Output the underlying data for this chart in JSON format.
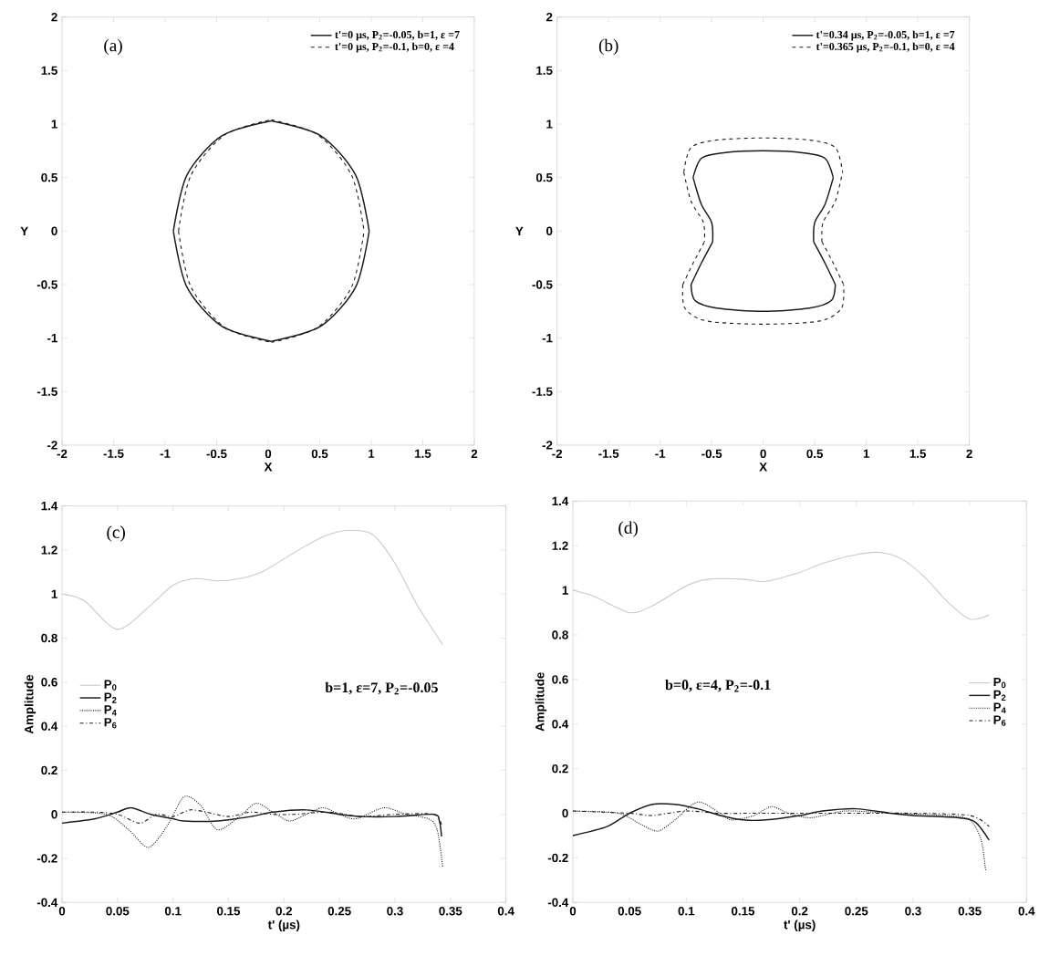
{
  "chart_data": [
    {
      "type": "line",
      "xlabel": "X",
      "ylabel": "Y",
      "xlim": [
        -2,
        2
      ],
      "ylim": [
        -2,
        2
      ],
      "xticks": [
        -2,
        -1.5,
        -1,
        -0.5,
        0,
        0.5,
        1,
        1.5,
        2
      ],
      "yticks": [
        -2,
        -1.5,
        -1,
        -0.5,
        0,
        0.5,
        1,
        1.5,
        2
      ],
      "legend": "top right",
      "annotations": [
        "(a)"
      ],
      "series": [
        {
          "name": "t'=0 µs, P$_{2}$=-0.05, b=1, ε =7",
          "color": "#1a1a1a",
          "line_style": "solid",
          "x": [
            -0.92,
            -0.79,
            -0.45,
            0.03
          ],
          "values": [
            0,
            0.52,
            0.89,
            1.03
          ]
        },
        {
          "name": "t'=0 µs, P$_{2}$=-0.1, b=0, ε =4",
          "color": "#1a1a1a",
          "line_style": "dashed",
          "x": [
            -0.87,
            -0.75,
            -0.42,
            0.03
          ],
          "values": [
            0,
            0.52,
            0.9,
            1.04
          ]
        },
        {
          "color": "#1a1a1a",
          "line_style": "solid",
          "x": [
            0.03,
            0.51,
            0.85,
            0.98
          ],
          "values": [
            1.03,
            0.89,
            0.52,
            0
          ]
        },
        {
          "color": "#1a1a1a",
          "line_style": "solid",
          "x": [
            -0.92,
            -0.79,
            -0.45,
            0.03
          ],
          "values": [
            0,
            -0.52,
            -0.89,
            -1.03
          ]
        },
        {
          "color": "#1a1a1a",
          "line_style": "solid",
          "x": [
            0.03,
            0.51,
            0.85,
            0.98
          ],
          "values": [
            -1.03,
            -0.89,
            -0.52,
            0
          ]
        },
        {
          "color": "#1a1a1a",
          "line_style": "dashed",
          "x": [
            0.03,
            0.48,
            0.81,
            0.93
          ],
          "values": [
            1.04,
            0.9,
            0.52,
            0
          ]
        },
        {
          "color": "#1a1a1a",
          "line_style": "dashed",
          "x": [
            -0.87,
            -0.75,
            -0.42,
            0.03
          ],
          "values": [
            0,
            -0.52,
            -0.9,
            -1.04
          ]
        },
        {
          "color": "#1a1a1a",
          "line_style": "dashed",
          "x": [
            0.03,
            0.48,
            0.81,
            0.93
          ],
          "values": [
            -1.04,
            -0.9,
            -0.52,
            0
          ]
        }
      ]
    },
    {
      "type": "line",
      "xlabel": "X",
      "ylabel": "Y",
      "xlim": [
        -2,
        2
      ],
      "ylim": [
        -2,
        2
      ],
      "xticks": [
        -2,
        -1.5,
        -1,
        -0.5,
        0,
        0.5,
        1,
        1.5,
        2
      ],
      "yticks": [
        -2,
        -1.5,
        -1,
        -0.5,
        0,
        0.5,
        1,
        1.5,
        2
      ],
      "legend": "top right",
      "annotations": [
        "(b)"
      ],
      "series": [
        {
          "name": "t'=0.34   µs, P$_{2}$=-0.05, b=1, ε =7",
          "color": "#1a1a1a",
          "line_style": "solid",
          "x": [
            -0.68,
            -0.6,
            -0.4,
            0,
            0.4,
            0.6,
            0.68
          ],
          "values": [
            0.5,
            0.68,
            0.73,
            0.75,
            0.73,
            0.68,
            0.5
          ]
        },
        {
          "name": "t'=0.365 µs, P$_{2}$=-0.1, b=0, ε =4",
          "color": "#1a1a1a",
          "line_style": "dashed",
          "x": [
            -0.77,
            -0.7,
            -0.45,
            0,
            0.45,
            0.7,
            0.77
          ],
          "values": [
            0.55,
            0.78,
            0.85,
            0.87,
            0.85,
            0.78,
            0.55
          ]
        },
        {
          "color": "#1a1a1a",
          "line_style": "solid",
          "x": [
            0.49,
            0.5,
            0.6,
            0.68
          ],
          "values": [
            -0.1,
            0.08,
            0.25,
            0.5
          ]
        },
        {
          "color": "#1a1a1a",
          "line_style": "solid",
          "x": [
            0.49,
            0.6,
            0.7
          ],
          "values": [
            -0.1,
            -0.3,
            -0.5
          ]
        },
        {
          "color": "#1a1a1a",
          "line_style": "solid",
          "x": [
            -0.7,
            -0.66,
            -0.45,
            0,
            0.45,
            0.66,
            0.7
          ],
          "values": [
            -0.5,
            -0.65,
            -0.72,
            -0.75,
            -0.72,
            -0.65,
            -0.5
          ]
        },
        {
          "color": "#1a1a1a",
          "line_style": "solid",
          "x": [
            -0.7,
            -0.6,
            -0.49
          ],
          "values": [
            -0.5,
            -0.3,
            -0.1
          ]
        },
        {
          "color": "#1a1a1a",
          "line_style": "solid",
          "x": [
            -0.68,
            -0.6,
            -0.5,
            -0.49
          ],
          "values": [
            0.5,
            0.25,
            0.08,
            -0.1
          ]
        },
        {
          "color": "#1a1a1a",
          "line_style": "dashed",
          "x": [
            0.57,
            0.58,
            0.7,
            0.77
          ],
          "values": [
            -0.1,
            0.08,
            0.28,
            0.55
          ]
        },
        {
          "color": "#1a1a1a",
          "line_style": "dashed",
          "x": [
            0.57,
            0.68,
            0.78
          ],
          "values": [
            -0.1,
            -0.3,
            -0.5
          ]
        },
        {
          "color": "#1a1a1a",
          "line_style": "dashed",
          "x": [
            -0.78,
            -0.76,
            -0.55,
            0,
            0.55,
            0.76,
            0.78
          ],
          "values": [
            -0.5,
            -0.72,
            -0.84,
            -0.87,
            -0.84,
            -0.72,
            -0.5
          ]
        },
        {
          "color": "#1a1a1a",
          "line_style": "dashed",
          "x": [
            -0.78,
            -0.68,
            -0.57
          ],
          "values": [
            -0.5,
            -0.3,
            -0.1
          ]
        },
        {
          "color": "#1a1a1a",
          "line_style": "dashed",
          "x": [
            -0.77,
            -0.7,
            -0.58,
            -0.57
          ],
          "values": [
            0.55,
            0.28,
            0.08,
            -0.1
          ]
        }
      ]
    },
    {
      "type": "line",
      "xlabel": "t' (µs)",
      "ylabel": "Amplitude",
      "xlim": [
        0,
        0.4
      ],
      "ylim": [
        -0.4,
        1.4
      ],
      "xticks": [
        0,
        0.05,
        0.1,
        0.15,
        0.2,
        0.25,
        0.3,
        0.35,
        0.4
      ],
      "yticks": [
        -0.4,
        -0.2,
        0,
        0.2,
        0.4,
        0.6,
        0.8,
        1,
        1.2,
        1.4
      ],
      "legend": "left",
      "annotations": [
        "(c)",
        "b=1, ε=7, P$_{2}$=-0.05"
      ],
      "series": [
        {
          "name": "P$_{0}$",
          "color": "#c8c8c8",
          "line_style": "solid",
          "x": [
            0,
            0.02,
            0.05,
            0.08,
            0.1,
            0.12,
            0.14,
            0.16,
            0.18,
            0.2,
            0.22,
            0.24,
            0.26,
            0.28,
            0.3,
            0.32,
            0.343
          ],
          "values": [
            1.0,
            0.97,
            0.84,
            0.95,
            1.04,
            1.07,
            1.06,
            1.07,
            1.1,
            1.16,
            1.22,
            1.27,
            1.29,
            1.27,
            1.14,
            0.95,
            0.77
          ]
        },
        {
          "name": "P$_{2}$",
          "color": "#1a1a1a",
          "line_style": "solid",
          "x": [
            0,
            0.03,
            0.05,
            0.062,
            0.08,
            0.1,
            0.11,
            0.14,
            0.17,
            0.19,
            0.22,
            0.25,
            0.27,
            0.3,
            0.335,
            0.34,
            0.342
          ],
          "values": [
            -0.04,
            -0.02,
            0.01,
            0.03,
            0.0,
            -0.02,
            -0.03,
            -0.03,
            -0.01,
            0.01,
            0.02,
            0.0,
            -0.01,
            -0.01,
            0.0,
            -0.03,
            -0.1
          ]
        },
        {
          "name": "P$_{4}$",
          "color": "#1a1a1a",
          "line_style": "dotted",
          "x": [
            0,
            0.04,
            0.06,
            0.078,
            0.095,
            0.11,
            0.125,
            0.14,
            0.16,
            0.175,
            0.19,
            0.205,
            0.22,
            0.235,
            0.25,
            0.265,
            0.29,
            0.31,
            0.33,
            0.338,
            0.343
          ],
          "values": [
            0.01,
            0.0,
            -0.07,
            -0.15,
            -0.05,
            0.08,
            0.04,
            -0.07,
            -0.01,
            0.05,
            0.01,
            -0.03,
            0.0,
            0.03,
            0.0,
            -0.02,
            0.03,
            0.0,
            -0.02,
            -0.07,
            -0.24
          ]
        },
        {
          "name": "P$_{6}$",
          "color": "#1a1a1a",
          "line_style": "dashdot",
          "x": [
            0,
            0.03,
            0.05,
            0.07,
            0.085,
            0.1,
            0.115,
            0.13,
            0.15,
            0.17,
            0.19,
            0.21,
            0.24,
            0.27,
            0.3,
            0.335,
            0.342
          ],
          "values": [
            0.01,
            0.01,
            0.0,
            -0.04,
            0.0,
            -0.01,
            0.02,
            0.01,
            -0.01,
            0.01,
            0.0,
            0.0,
            0.01,
            -0.01,
            0.0,
            0.0,
            -0.05
          ]
        }
      ]
    },
    {
      "type": "line",
      "xlabel": "t' (µs)",
      "ylabel": "Amplitude",
      "xlim": [
        0,
        0.4
      ],
      "ylim": [
        -0.4,
        1.4
      ],
      "xticks": [
        0,
        0.05,
        0.1,
        0.15,
        0.2,
        0.25,
        0.3,
        0.35,
        0.4
      ],
      "yticks": [
        -0.4,
        -0.2,
        0,
        0.2,
        0.4,
        0.6,
        0.8,
        1,
        1.2,
        1.4
      ],
      "legend": "right",
      "annotations": [
        "(d)",
        "b=0,  ε=4,  P$_{2}$=-0.1"
      ],
      "series": [
        {
          "name": "P$_{0}$",
          "color": "#c8c8c8",
          "line_style": "solid",
          "x": [
            0,
            0.02,
            0.05,
            0.07,
            0.1,
            0.12,
            0.15,
            0.17,
            0.2,
            0.22,
            0.25,
            0.27,
            0.29,
            0.31,
            0.33,
            0.35,
            0.367
          ],
          "values": [
            1.0,
            0.97,
            0.9,
            0.93,
            1.02,
            1.05,
            1.05,
            1.04,
            1.08,
            1.12,
            1.16,
            1.17,
            1.14,
            1.06,
            0.95,
            0.87,
            0.89
          ]
        },
        {
          "name": "P$_{2}$",
          "color": "#1a1a1a",
          "line_style": "solid",
          "x": [
            0,
            0.03,
            0.05,
            0.07,
            0.09,
            0.11,
            0.13,
            0.15,
            0.17,
            0.2,
            0.22,
            0.25,
            0.28,
            0.3,
            0.34,
            0.355,
            0.367
          ],
          "values": [
            -0.1,
            -0.06,
            0.0,
            0.04,
            0.04,
            0.02,
            -0.01,
            -0.03,
            -0.03,
            -0.01,
            0.01,
            0.02,
            0.0,
            -0.01,
            -0.02,
            -0.04,
            -0.12
          ]
        },
        {
          "name": "P$_{4}$",
          "color": "#1a1a1a",
          "line_style": "dotted",
          "x": [
            0,
            0.04,
            0.06,
            0.075,
            0.09,
            0.11,
            0.13,
            0.14,
            0.16,
            0.175,
            0.19,
            0.21,
            0.24,
            0.28,
            0.33,
            0.35,
            0.36,
            0.364
          ],
          "values": [
            0.01,
            0.0,
            -0.05,
            -0.08,
            -0.03,
            0.05,
            0.0,
            -0.03,
            -0.01,
            0.03,
            0.0,
            -0.02,
            0.01,
            0.0,
            -0.01,
            -0.03,
            -0.12,
            -0.26
          ]
        },
        {
          "name": "P$_{6}$",
          "color": "#1a1a1a",
          "line_style": "dashdot",
          "x": [
            0,
            0.05,
            0.07,
            0.1,
            0.13,
            0.16,
            0.2,
            0.25,
            0.3,
            0.35,
            0.367
          ],
          "values": [
            0.01,
            0.0,
            -0.01,
            0.01,
            0.0,
            0.0,
            0.0,
            0.0,
            0.0,
            -0.01,
            -0.06
          ]
        }
      ]
    }
  ]
}
